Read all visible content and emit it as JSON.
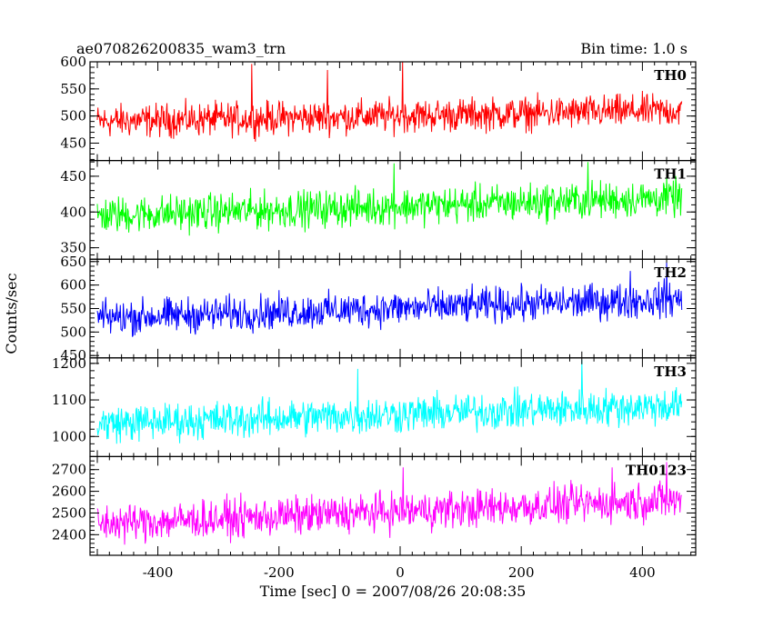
{
  "header": {
    "title": "ae070826200835_wam3_trn",
    "bin_time": "Bin time: 1.0 s"
  },
  "chart_data": {
    "type": "line",
    "title": "ae070826200835_wam3_trn",
    "subtitle": "Bin time: 1.0 s",
    "xlabel": "Time [sec] 0 = 2007/08/26 20:08:35",
    "ylabel": "Counts/sec",
    "xlim": [
      -512,
      488
    ],
    "xticks": [
      -400,
      -200,
      0,
      200,
      400
    ],
    "x_start": -500,
    "x_end": 465,
    "x_step": 1,
    "panels": [
      {
        "name": "TH0",
        "color": "#ff0000",
        "ylim": [
          418,
          600
        ],
        "yticks": [
          450,
          500,
          550,
          600
        ],
        "mean_start": 490,
        "mean_end": 510,
        "noise_amplitude": 45,
        "spikes": [
          [
            4,
            600
          ],
          [
            -245,
            596
          ],
          [
            -120,
            585
          ]
        ]
      },
      {
        "name": "TH1",
        "color": "#00ff00",
        "ylim": [
          334,
          472
        ],
        "yticks": [
          350,
          400,
          450
        ],
        "mean_start": 395,
        "mean_end": 420,
        "noise_amplitude": 38,
        "spikes": [
          [
            310,
            470
          ],
          [
            -10,
            468
          ]
        ]
      },
      {
        "name": "TH2",
        "color": "#0000ff",
        "ylim": [
          445,
          655
        ],
        "yticks": [
          450,
          500,
          550,
          600,
          650
        ],
        "mean_start": 530,
        "mean_end": 570,
        "noise_amplitude": 55,
        "spikes": [
          [
            440,
            650
          ],
          [
            380,
            630
          ]
        ]
      },
      {
        "name": "TH3",
        "color": "#00ffff",
        "ylim": [
          945,
          1215
        ],
        "yticks": [
          1000,
          1100,
          1200
        ],
        "mean_start": 1035,
        "mean_end": 1085,
        "noise_amplitude": 75,
        "spikes": [
          [
            300,
            1210
          ],
          [
            -70,
            1185
          ]
        ]
      },
      {
        "name": "TH0123",
        "color": "#ff00ff",
        "ylim": [
          2305,
          2760
        ],
        "yticks": [
          2400,
          2500,
          2600,
          2700
        ],
        "mean_start": 2450,
        "mean_end": 2560,
        "noise_amplitude": 130,
        "spikes": [
          [
            5,
            2710
          ],
          [
            440,
            2735
          ],
          [
            350,
            2710
          ]
        ]
      }
    ]
  }
}
